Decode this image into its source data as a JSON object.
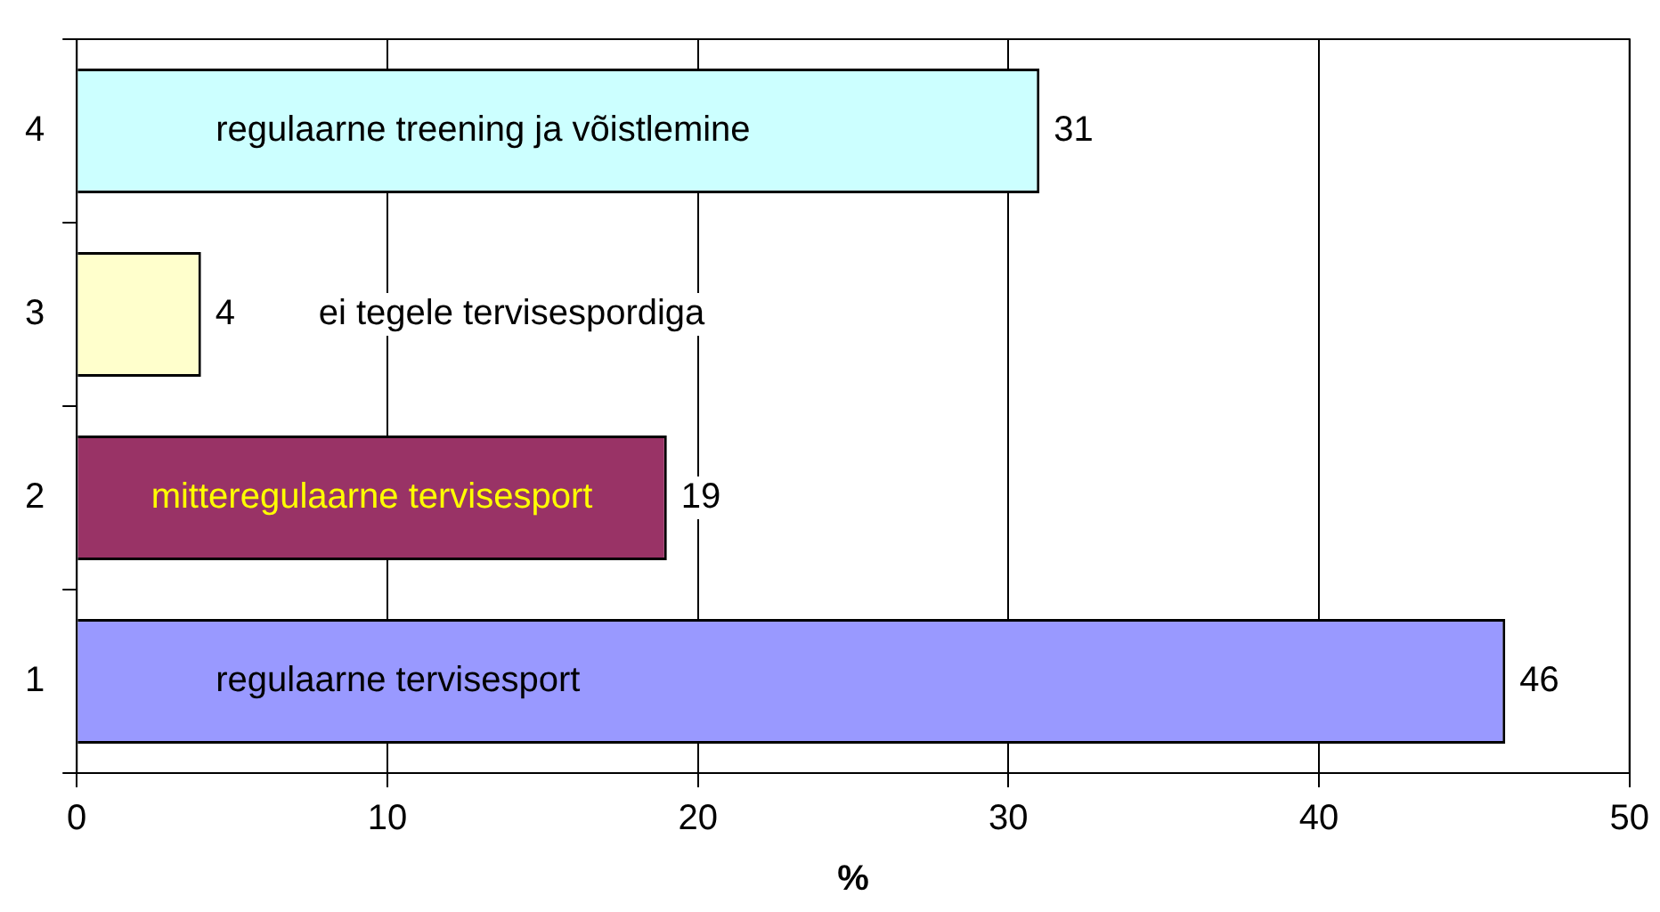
{
  "chart_data": {
    "type": "bar",
    "orientation": "horizontal",
    "categories": [
      "4",
      "3",
      "2",
      "1"
    ],
    "values": [
      31,
      4,
      19,
      46
    ],
    "colors": [
      "#ccffff",
      "#ffffcc",
      "#993366",
      "#9999ff"
    ],
    "xlabel": "%",
    "xlim": [
      0,
      50
    ],
    "xticks": [
      0,
      10,
      20,
      30,
      40,
      50
    ],
    "grid": "x",
    "legend": false,
    "data_labels": true,
    "annotations": [
      "regulaarne treening ja võistlemine",
      "ei tegele tervisespordiga",
      "mitteregulaarne tervisesport",
      "regulaarne tervisesport"
    ]
  }
}
